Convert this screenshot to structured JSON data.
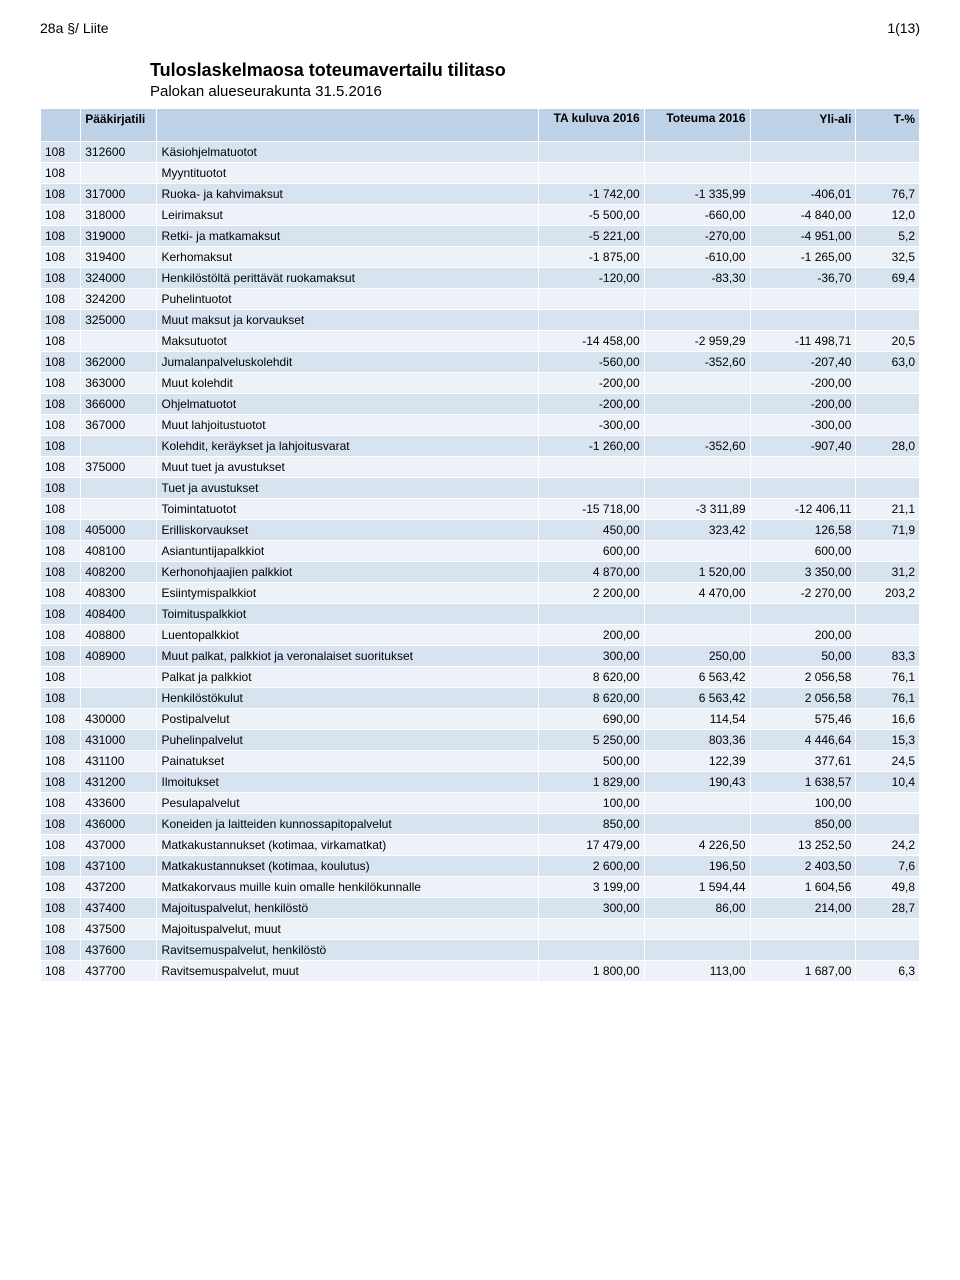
{
  "header": {
    "left": "28a §/  Liite",
    "right": "1(13)"
  },
  "title": "Tuloslaskelmaosa toteumavertailu tilitaso",
  "subtitle": "Palokan alueseurakunta 31.5.2016",
  "columns": {
    "c1": "",
    "c2": "Pääkirjatili",
    "c3": "",
    "c4": "TA kuluva 2016",
    "c5": "Toteuma 2016",
    "c6": "Yli-ali",
    "c7": "T-%"
  },
  "colors": {
    "header_bg": "#bdd1e7",
    "row_odd": "#d8e3f0",
    "row_even": "#edf2f8",
    "border": "#ffffff",
    "text": "#000000"
  },
  "rows": [
    {
      "c1": "108",
      "c2": "312600",
      "c3": "Käsiohjelmatuotot"
    },
    {
      "c1": "108",
      "c2": "",
      "c3": "Myyntituotot"
    },
    {
      "c1": "108",
      "c2": "317000",
      "c3": "Ruoka- ja kahvimaksut",
      "c4": "-1 742,00",
      "c5": "-1 335,99",
      "c6": "-406,01",
      "c7": "76,7"
    },
    {
      "c1": "108",
      "c2": "318000",
      "c3": "Leirimaksut",
      "c4": "-5 500,00",
      "c5": "-660,00",
      "c6": "-4 840,00",
      "c7": "12,0"
    },
    {
      "c1": "108",
      "c2": "319000",
      "c3": "Retki- ja matkamaksut",
      "c4": "-5 221,00",
      "c5": "-270,00",
      "c6": "-4 951,00",
      "c7": "5,2"
    },
    {
      "c1": "108",
      "c2": "319400",
      "c3": "Kerhomaksut",
      "c4": "-1 875,00",
      "c5": "-610,00",
      "c6": "-1 265,00",
      "c7": "32,5"
    },
    {
      "c1": "108",
      "c2": "324000",
      "c3": "Henkilöstöltä perittävät ruokamaksut",
      "c4": "-120,00",
      "c5": "-83,30",
      "c6": "-36,70",
      "c7": "69,4"
    },
    {
      "c1": "108",
      "c2": "324200",
      "c3": "Puhelintuotot"
    },
    {
      "c1": "108",
      "c2": "325000",
      "c3": "Muut maksut ja korvaukset"
    },
    {
      "c1": "108",
      "c2": "",
      "c3": "Maksutuotot",
      "c4": "-14 458,00",
      "c5": "-2 959,29",
      "c6": "-11 498,71",
      "c7": "20,5"
    },
    {
      "c1": "108",
      "c2": "362000",
      "c3": "Jumalanpalveluskolehdit",
      "c4": "-560,00",
      "c5": "-352,60",
      "c6": "-207,40",
      "c7": "63,0"
    },
    {
      "c1": "108",
      "c2": "363000",
      "c3": "Muut kolehdit",
      "c4": "-200,00",
      "c5": "",
      "c6": "-200,00",
      "c7": ""
    },
    {
      "c1": "108",
      "c2": "366000",
      "c3": "Ohjelmatuotot",
      "c4": "-200,00",
      "c5": "",
      "c6": "-200,00",
      "c7": ""
    },
    {
      "c1": "108",
      "c2": "367000",
      "c3": "Muut lahjoitustuotot",
      "c4": "-300,00",
      "c5": "",
      "c6": "-300,00",
      "c7": ""
    },
    {
      "c1": "108",
      "c2": "",
      "c3": "Kolehdit, keräykset ja lahjoitusvarat",
      "c4": "-1 260,00",
      "c5": "-352,60",
      "c6": "-907,40",
      "c7": "28,0"
    },
    {
      "c1": "108",
      "c2": "375000",
      "c3": "Muut tuet ja avustukset"
    },
    {
      "c1": "108",
      "c2": "",
      "c3": "Tuet ja avustukset"
    },
    {
      "c1": "108",
      "c2": "",
      "c3": "Toimintatuotot",
      "c4": "-15 718,00",
      "c5": "-3 311,89",
      "c6": "-12 406,11",
      "c7": "21,1"
    },
    {
      "c1": "108",
      "c2": "405000",
      "c3": "Erilliskorvaukset",
      "c4": "450,00",
      "c5": "323,42",
      "c6": "126,58",
      "c7": "71,9"
    },
    {
      "c1": "108",
      "c2": "408100",
      "c3": "Asiantuntijapalkkiot",
      "c4": "600,00",
      "c5": "",
      "c6": "600,00",
      "c7": ""
    },
    {
      "c1": "108",
      "c2": "408200",
      "c3": "Kerhonohjaajien palkkiot",
      "c4": "4 870,00",
      "c5": "1 520,00",
      "c6": "3 350,00",
      "c7": "31,2"
    },
    {
      "c1": "108",
      "c2": "408300",
      "c3": "Esiintymispalkkiot",
      "c4": "2 200,00",
      "c5": "4 470,00",
      "c6": "-2 270,00",
      "c7": "203,2"
    },
    {
      "c1": "108",
      "c2": "408400",
      "c3": "Toimituspalkkiot"
    },
    {
      "c1": "108",
      "c2": "408800",
      "c3": "Luentopalkkiot",
      "c4": "200,00",
      "c5": "",
      "c6": "200,00",
      "c7": ""
    },
    {
      "c1": "108",
      "c2": "408900",
      "c3": "Muut palkat, palkkiot ja veronalaiset suoritukset",
      "c4": "300,00",
      "c5": "250,00",
      "c6": "50,00",
      "c7": "83,3"
    },
    {
      "c1": "108",
      "c2": "",
      "c3": "Palkat ja palkkiot",
      "c4": "8 620,00",
      "c5": "6 563,42",
      "c6": "2 056,58",
      "c7": "76,1"
    },
    {
      "c1": "108",
      "c2": "",
      "c3": "Henkilöstökulut",
      "c4": "8 620,00",
      "c5": "6 563,42",
      "c6": "2 056,58",
      "c7": "76,1"
    },
    {
      "c1": "108",
      "c2": "430000",
      "c3": "Postipalvelut",
      "c4": "690,00",
      "c5": "114,54",
      "c6": "575,46",
      "c7": "16,6"
    },
    {
      "c1": "108",
      "c2": "431000",
      "c3": "Puhelinpalvelut",
      "c4": "5 250,00",
      "c5": "803,36",
      "c6": "4 446,64",
      "c7": "15,3"
    },
    {
      "c1": "108",
      "c2": "431100",
      "c3": "Painatukset",
      "c4": "500,00",
      "c5": "122,39",
      "c6": "377,61",
      "c7": "24,5"
    },
    {
      "c1": "108",
      "c2": "431200",
      "c3": "Ilmoitukset",
      "c4": "1 829,00",
      "c5": "190,43",
      "c6": "1 638,57",
      "c7": "10,4"
    },
    {
      "c1": "108",
      "c2": "433600",
      "c3": "Pesulapalvelut",
      "c4": "100,00",
      "c5": "",
      "c6": "100,00",
      "c7": ""
    },
    {
      "c1": "108",
      "c2": "436000",
      "c3": "Koneiden ja laitteiden kunnossapitopalvelut",
      "c4": "850,00",
      "c5": "",
      "c6": "850,00",
      "c7": ""
    },
    {
      "c1": "108",
      "c2": "437000",
      "c3": "Matkakustannukset (kotimaa, virkamatkat)",
      "c4": "17 479,00",
      "c5": "4 226,50",
      "c6": "13 252,50",
      "c7": "24,2"
    },
    {
      "c1": "108",
      "c2": "437100",
      "c3": "Matkakustannukset (kotimaa, koulutus)",
      "c4": "2 600,00",
      "c5": "196,50",
      "c6": "2 403,50",
      "c7": "7,6"
    },
    {
      "c1": "108",
      "c2": "437200",
      "c3": "Matkakorvaus muille kuin omalle henkilökunnalle",
      "c4": "3 199,00",
      "c5": "1 594,44",
      "c6": "1 604,56",
      "c7": "49,8"
    },
    {
      "c1": "108",
      "c2": "437400",
      "c3": "Majoituspalvelut, henkilöstö",
      "c4": "300,00",
      "c5": "86,00",
      "c6": "214,00",
      "c7": "28,7"
    },
    {
      "c1": "108",
      "c2": "437500",
      "c3": "Majoituspalvelut, muut"
    },
    {
      "c1": "108",
      "c2": "437600",
      "c3": "Ravitsemuspalvelut, henkilöstö"
    },
    {
      "c1": "108",
      "c2": "437700",
      "c3": "Ravitsemuspalvelut, muut",
      "c4": "1 800,00",
      "c5": "113,00",
      "c6": "1 687,00",
      "c7": "6,3"
    }
  ]
}
